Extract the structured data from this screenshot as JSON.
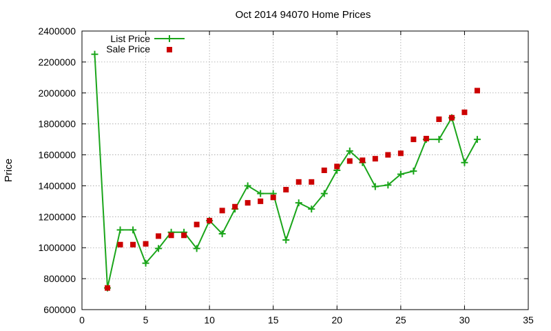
{
  "chart_data": {
    "type": "line",
    "title": "Oct 2014 94070 Home Prices",
    "xlabel": "",
    "ylabel": "Price",
    "xlim": [
      0,
      35
    ],
    "ylim": [
      600000,
      2400000
    ],
    "xticks": [
      0,
      5,
      10,
      15,
      20,
      25,
      30,
      35
    ],
    "yticks": [
      600000,
      800000,
      1000000,
      1200000,
      1400000,
      1600000,
      1800000,
      2000000,
      2200000,
      2400000
    ],
    "grid": true,
    "legend": "top-left",
    "series": [
      {
        "name": "List Price",
        "style": "line-with-plus-markers",
        "color": "#1aa51a",
        "x": [
          1,
          2,
          3,
          4,
          5,
          6,
          7,
          8,
          9,
          10,
          11,
          12,
          13,
          14,
          15,
          16,
          17,
          18,
          19,
          20,
          21,
          22,
          23,
          24,
          25,
          26,
          27,
          28,
          29,
          30,
          31
        ],
        "values": [
          2250000,
          740000,
          1115000,
          1115000,
          900000,
          995000,
          1100000,
          1100000,
          995000,
          1175000,
          1090000,
          1250000,
          1400000,
          1350000,
          1350000,
          1050000,
          1290000,
          1250000,
          1350000,
          1500000,
          1625000,
          1550000,
          1395000,
          1405000,
          1475000,
          1495000,
          1700000,
          1700000,
          1840000,
          1550000,
          1700000
        ]
      },
      {
        "name": "Sale Price",
        "style": "square-markers",
        "color": "#cc0000",
        "x": [
          2,
          3,
          4,
          5,
          6,
          7,
          8,
          9,
          10,
          11,
          12,
          13,
          14,
          15,
          16,
          17,
          18,
          19,
          20,
          21,
          22,
          23,
          24,
          25,
          26,
          27,
          28,
          29,
          30,
          31
        ],
        "values": [
          740000,
          1020000,
          1020000,
          1025000,
          1075000,
          1080000,
          1080000,
          1150000,
          1175000,
          1240000,
          1265000,
          1290000,
          1300000,
          1325000,
          1375000,
          1425000,
          1425000,
          1500000,
          1525000,
          1560000,
          1565000,
          1575000,
          1600000,
          1610000,
          1700000,
          1705000,
          1830000,
          1840000,
          1875000,
          2015000
        ]
      }
    ]
  }
}
